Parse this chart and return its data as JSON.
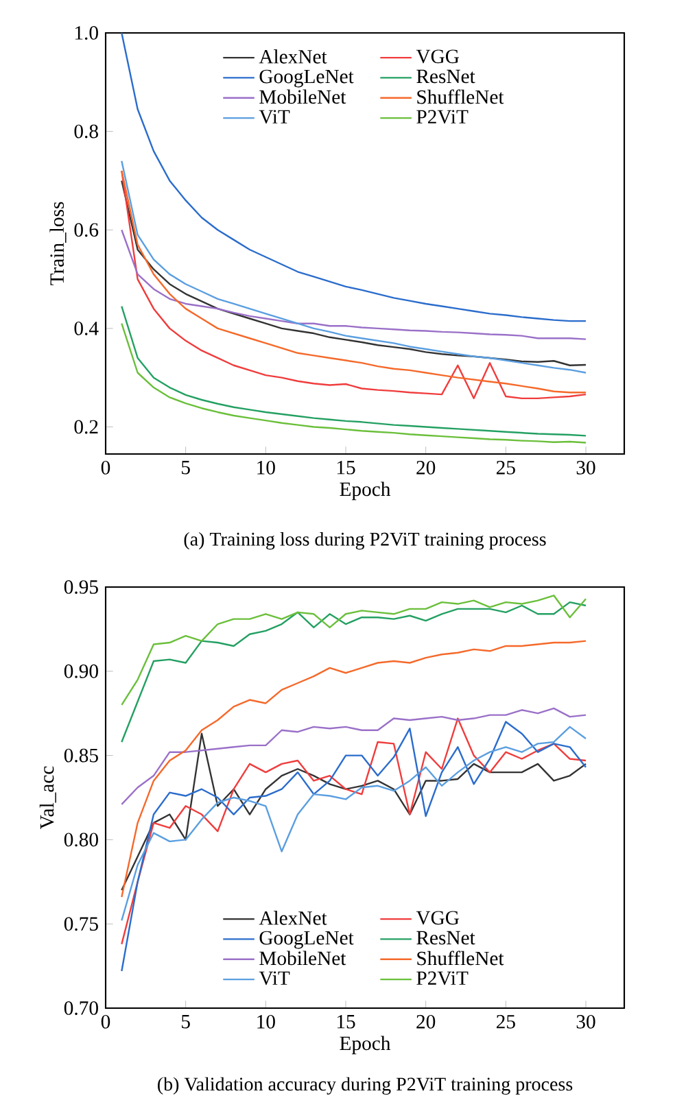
{
  "chart_data": [
    {
      "type": "line",
      "title": "(a) Training loss during P2ViT training process",
      "xlabel": "Epoch",
      "ylabel": "Train_loss",
      "x": [
        1,
        2,
        3,
        4,
        5,
        6,
        7,
        8,
        9,
        10,
        11,
        12,
        13,
        14,
        15,
        16,
        17,
        18,
        19,
        20,
        21,
        22,
        23,
        24,
        25,
        26,
        27,
        28,
        29,
        30
      ],
      "xlim": [
        0,
        32.4
      ],
      "ylim": [
        0.145,
        1.0
      ],
      "xticks": [
        0,
        5,
        10,
        15,
        20,
        25,
        30
      ],
      "yticks": [
        {
          "value": 0.2,
          "label": "0.2"
        },
        {
          "value": 0.4,
          "label": "0.4"
        },
        {
          "value": 0.6,
          "label": "0.6"
        },
        {
          "value": 0.8,
          "label": "0.8"
        },
        {
          "value": 1.0,
          "label": "1.0"
        }
      ],
      "legend": "top",
      "grid": false,
      "line_style": "solid",
      "series": [
        {
          "name": "AlexNet",
          "color": "#333333",
          "values": [
            0.7,
            0.56,
            0.52,
            0.49,
            0.47,
            0.455,
            0.44,
            0.43,
            0.42,
            0.41,
            0.4,
            0.395,
            0.39,
            0.382,
            0.377,
            0.372,
            0.366,
            0.362,
            0.358,
            0.352,
            0.348,
            0.345,
            0.343,
            0.34,
            0.337,
            0.333,
            0.332,
            0.334,
            0.325,
            0.326
          ]
        },
        {
          "name": "VGG",
          "color": "#f03c3c",
          "values": [
            0.72,
            0.5,
            0.44,
            0.4,
            0.375,
            0.355,
            0.34,
            0.325,
            0.315,
            0.305,
            0.3,
            0.293,
            0.288,
            0.285,
            0.287,
            0.278,
            0.275,
            0.273,
            0.27,
            0.268,
            0.266,
            0.325,
            0.258,
            0.33,
            0.262,
            0.258,
            0.258,
            0.26,
            0.262,
            0.266
          ]
        },
        {
          "name": "GoogLeNet",
          "color": "#2a6ccc",
          "values": [
            1.0,
            0.845,
            0.76,
            0.7,
            0.66,
            0.625,
            0.6,
            0.58,
            0.56,
            0.545,
            0.53,
            0.515,
            0.505,
            0.495,
            0.485,
            0.478,
            0.47,
            0.462,
            0.456,
            0.45,
            0.445,
            0.44,
            0.435,
            0.43,
            0.427,
            0.423,
            0.42,
            0.417,
            0.415,
            0.415
          ]
        },
        {
          "name": "ResNet",
          "color": "#23a062",
          "values": [
            0.445,
            0.34,
            0.3,
            0.28,
            0.265,
            0.255,
            0.247,
            0.24,
            0.235,
            0.23,
            0.226,
            0.222,
            0.218,
            0.215,
            0.212,
            0.21,
            0.207,
            0.204,
            0.202,
            0.2,
            0.198,
            0.196,
            0.194,
            0.192,
            0.19,
            0.188,
            0.186,
            0.185,
            0.184,
            0.182
          ]
        },
        {
          "name": "MobileNet",
          "color": "#9a70c8",
          "values": [
            0.6,
            0.51,
            0.48,
            0.46,
            0.45,
            0.445,
            0.44,
            0.432,
            0.425,
            0.42,
            0.415,
            0.41,
            0.41,
            0.405,
            0.405,
            0.402,
            0.4,
            0.398,
            0.396,
            0.395,
            0.393,
            0.392,
            0.39,
            0.388,
            0.387,
            0.385,
            0.38,
            0.38,
            0.38,
            0.378
          ]
        },
        {
          "name": "ShuffleNet",
          "color": "#f5692a",
          "values": [
            0.72,
            0.57,
            0.51,
            0.47,
            0.44,
            0.42,
            0.4,
            0.39,
            0.38,
            0.37,
            0.36,
            0.35,
            0.345,
            0.34,
            0.335,
            0.33,
            0.323,
            0.318,
            0.315,
            0.31,
            0.305,
            0.3,
            0.296,
            0.292,
            0.288,
            0.283,
            0.278,
            0.272,
            0.27,
            0.27
          ]
        },
        {
          "name": "ViT",
          "color": "#5a9ee0",
          "values": [
            0.74,
            0.59,
            0.54,
            0.51,
            0.49,
            0.475,
            0.46,
            0.45,
            0.44,
            0.43,
            0.42,
            0.41,
            0.4,
            0.393,
            0.385,
            0.38,
            0.375,
            0.37,
            0.363,
            0.358,
            0.353,
            0.348,
            0.343,
            0.34,
            0.335,
            0.33,
            0.325,
            0.32,
            0.316,
            0.31
          ]
        },
        {
          "name": "P2ViT",
          "color": "#6abf3a",
          "values": [
            0.41,
            0.31,
            0.28,
            0.26,
            0.248,
            0.238,
            0.23,
            0.223,
            0.218,
            0.213,
            0.208,
            0.204,
            0.2,
            0.198,
            0.195,
            0.192,
            0.19,
            0.188,
            0.185,
            0.183,
            0.181,
            0.179,
            0.177,
            0.175,
            0.174,
            0.172,
            0.171,
            0.169,
            0.17,
            0.168
          ]
        }
      ]
    },
    {
      "type": "line",
      "title": "(b) Validation accuracy during P2ViT training process",
      "xlabel": "Epoch",
      "ylabel": "Val_acc",
      "x": [
        1,
        2,
        3,
        4,
        5,
        6,
        7,
        8,
        9,
        10,
        11,
        12,
        13,
        14,
        15,
        16,
        17,
        18,
        19,
        20,
        21,
        22,
        23,
        24,
        25,
        26,
        27,
        28,
        29,
        30
      ],
      "xlim": [
        0,
        32.4
      ],
      "ylim": [
        0.7,
        0.95
      ],
      "xticks": [
        0,
        5,
        10,
        15,
        20,
        25,
        30
      ],
      "yticks": [
        {
          "value": 0.7,
          "label": "0.70"
        },
        {
          "value": 0.75,
          "label": "0.75"
        },
        {
          "value": 0.8,
          "label": "0.80"
        },
        {
          "value": 0.85,
          "label": "0.85"
        },
        {
          "value": 0.9,
          "label": "0.90"
        },
        {
          "value": 0.95,
          "label": "0.95"
        }
      ],
      "legend": "bottom",
      "grid": false,
      "line_style": "solid",
      "series": [
        {
          "name": "AlexNet",
          "color": "#333333",
          "values": [
            0.77,
            0.79,
            0.81,
            0.815,
            0.8,
            0.863,
            0.82,
            0.83,
            0.815,
            0.83,
            0.838,
            0.842,
            0.838,
            0.833,
            0.83,
            0.832,
            0.835,
            0.83,
            0.815,
            0.835,
            0.835,
            0.836,
            0.845,
            0.84,
            0.84,
            0.84,
            0.845,
            0.835,
            0.838,
            0.845
          ]
        },
        {
          "name": "VGG",
          "color": "#f03c3c",
          "values": [
            0.738,
            0.775,
            0.81,
            0.807,
            0.82,
            0.815,
            0.805,
            0.83,
            0.845,
            0.84,
            0.845,
            0.847,
            0.835,
            0.838,
            0.83,
            0.827,
            0.858,
            0.857,
            0.815,
            0.852,
            0.842,
            0.872,
            0.85,
            0.84,
            0.852,
            0.848,
            0.853,
            0.857,
            0.848,
            0.847
          ]
        },
        {
          "name": "GoogLeNet",
          "color": "#2a6ccc",
          "values": [
            0.722,
            0.775,
            0.815,
            0.828,
            0.826,
            0.83,
            0.825,
            0.815,
            0.825,
            0.826,
            0.83,
            0.84,
            0.827,
            0.835,
            0.85,
            0.85,
            0.838,
            0.849,
            0.866,
            0.814,
            0.84,
            0.855,
            0.833,
            0.848,
            0.87,
            0.863,
            0.852,
            0.857,
            0.855,
            0.843
          ]
        },
        {
          "name": "ResNet",
          "color": "#23a062",
          "values": [
            0.858,
            0.882,
            0.906,
            0.907,
            0.905,
            0.918,
            0.917,
            0.915,
            0.922,
            0.924,
            0.928,
            0.935,
            0.926,
            0.934,
            0.928,
            0.932,
            0.932,
            0.931,
            0.933,
            0.93,
            0.934,
            0.937,
            0.937,
            0.937,
            0.935,
            0.939,
            0.934,
            0.934,
            0.941,
            0.939
          ]
        },
        {
          "name": "MobileNet",
          "color": "#9a70c8",
          "values": [
            0.821,
            0.831,
            0.838,
            0.852,
            0.852,
            0.853,
            0.854,
            0.855,
            0.856,
            0.856,
            0.865,
            0.864,
            0.867,
            0.866,
            0.867,
            0.865,
            0.865,
            0.872,
            0.871,
            0.872,
            0.873,
            0.871,
            0.872,
            0.874,
            0.874,
            0.877,
            0.875,
            0.878,
            0.873,
            0.874
          ]
        },
        {
          "name": "ShuffleNet",
          "color": "#f5692a",
          "values": [
            0.766,
            0.81,
            0.835,
            0.847,
            0.853,
            0.865,
            0.871,
            0.879,
            0.883,
            0.881,
            0.889,
            0.893,
            0.897,
            0.902,
            0.899,
            0.902,
            0.905,
            0.906,
            0.905,
            0.908,
            0.91,
            0.911,
            0.913,
            0.912,
            0.915,
            0.915,
            0.916,
            0.917,
            0.917,
            0.918
          ]
        },
        {
          "name": "ViT",
          "color": "#5a9ee0",
          "values": [
            0.752,
            0.785,
            0.804,
            0.799,
            0.8,
            0.812,
            0.822,
            0.825,
            0.823,
            0.82,
            0.793,
            0.815,
            0.827,
            0.826,
            0.824,
            0.831,
            0.832,
            0.829,
            0.835,
            0.843,
            0.832,
            0.84,
            0.847,
            0.852,
            0.855,
            0.852,
            0.857,
            0.858,
            0.867,
            0.86
          ]
        },
        {
          "name": "P2ViT",
          "color": "#6abf3a",
          "values": [
            0.88,
            0.895,
            0.916,
            0.917,
            0.921,
            0.918,
            0.928,
            0.931,
            0.931,
            0.934,
            0.931,
            0.935,
            0.934,
            0.926,
            0.934,
            0.936,
            0.935,
            0.934,
            0.937,
            0.937,
            0.941,
            0.94,
            0.942,
            0.938,
            0.941,
            0.94,
            0.942,
            0.945,
            0.932,
            0.943
          ]
        }
      ]
    }
  ]
}
